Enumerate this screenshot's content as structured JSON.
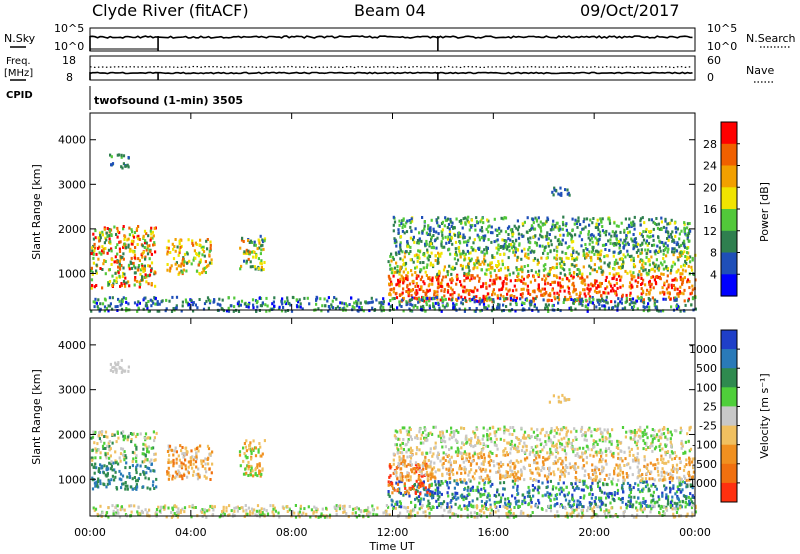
{
  "header": {
    "station": "Clyde River (fitACF)",
    "beam": "Beam 04",
    "date": "09/Oct/2017"
  },
  "top_panels": {
    "nsky_label": "N.Sky",
    "freq_label_1": "Freq.",
    "freq_label_2": "[MHz]",
    "cpid_label": "CPID",
    "nsearch_label": "N.Search",
    "nave_label": "Nave",
    "nsky_ticks": [
      "10^5",
      "10^0"
    ],
    "nsearch_ticks": [
      "10^5",
      "10^0"
    ],
    "freq_ticks": [
      "18",
      "8"
    ],
    "nave_ticks": [
      "60",
      "0"
    ],
    "cpid_text": "twofsound (1-min) 3505"
  },
  "colors": {
    "power_scale": [
      "#0000ff",
      "#1f4fb8",
      "#2f7f4f",
      "#52c83a",
      "#f0e400",
      "#f2a000",
      "#f06000",
      "#ff0000"
    ],
    "velocity_scale": [
      "#1f3fc8",
      "#2a7ab8",
      "#2f8a4f",
      "#4fcf3a",
      "#c8c8c8",
      "#f0c060",
      "#f09020",
      "#f07010",
      "#ff3010"
    ]
  },
  "chart_data": [
    {
      "type": "heatmap",
      "name": "power",
      "ylabel": "Slant Range [km]",
      "yticks": [
        1000,
        2000,
        3000,
        4000
      ],
      "ylim": [
        180,
        4600
      ],
      "xlim": [
        0,
        24
      ],
      "colorbar_label": "Power [dB]",
      "colorbar_ticks": [
        "4",
        "8",
        "12",
        "16",
        "20",
        "24",
        "28"
      ],
      "colorbar_range": [
        0,
        30
      ],
      "regions": [
        {
          "t0": 0.0,
          "t1": 2.6,
          "r0": 700,
          "r1": 2100,
          "vmin": 8,
          "vmax": 30
        },
        {
          "t0": 3.0,
          "t1": 4.8,
          "r0": 1000,
          "r1": 1800,
          "vmin": 10,
          "vmax": 26
        },
        {
          "t0": 5.9,
          "t1": 6.9,
          "r0": 1100,
          "r1": 1900,
          "vmin": 6,
          "vmax": 24
        },
        {
          "t0": 0.7,
          "t1": 1.5,
          "r0": 3400,
          "r1": 3700,
          "vmin": 4,
          "vmax": 12
        },
        {
          "t0": 11.8,
          "t1": 24.0,
          "r0": 400,
          "r1": 1000,
          "vmin": 20,
          "vmax": 30
        },
        {
          "t0": 11.8,
          "t1": 24.0,
          "r0": 1000,
          "r1": 1500,
          "vmin": 8,
          "vmax": 22
        },
        {
          "t0": 12.0,
          "t1": 23.8,
          "r0": 1500,
          "r1": 2300,
          "vmin": 4,
          "vmax": 16
        },
        {
          "t0": 18.2,
          "t1": 19.0,
          "r0": 2750,
          "r1": 2950,
          "vmin": 4,
          "vmax": 12
        },
        {
          "t0": 0.0,
          "t1": 24.0,
          "r0": 180,
          "r1": 500,
          "vmin": 2,
          "vmax": 14
        }
      ]
    },
    {
      "type": "heatmap",
      "name": "velocity",
      "ylabel": "Slant Range [km]",
      "yticks": [
        1000,
        2000,
        3000,
        4000
      ],
      "ylim": [
        180,
        4600
      ],
      "xlim": [
        0,
        24
      ],
      "colorbar_label": "Velocity [m s⁻¹]",
      "colorbar_ticks": [
        "1000",
        "500",
        "100",
        "25",
        "-25",
        "-100",
        "-500",
        "-1000"
      ],
      "regions": [
        {
          "t0": 0.0,
          "t1": 2.6,
          "r0": 800,
          "r1": 1400,
          "cls": [
            1,
            2
          ]
        },
        {
          "t0": 0.0,
          "t1": 2.6,
          "r0": 1400,
          "r1": 2100,
          "cls": [
            2,
            3,
            4,
            5
          ]
        },
        {
          "t0": 3.0,
          "t1": 4.8,
          "r0": 1000,
          "r1": 1800,
          "cls": [
            4,
            5,
            6,
            7
          ]
        },
        {
          "t0": 5.9,
          "t1": 6.9,
          "r0": 1100,
          "r1": 1900,
          "cls": [
            3,
            5,
            6
          ]
        },
        {
          "t0": 0.7,
          "t1": 1.5,
          "r0": 3400,
          "r1": 3700,
          "cls": [
            4
          ]
        },
        {
          "t0": 11.8,
          "t1": 24.0,
          "r0": 400,
          "r1": 1000,
          "cls": [
            0,
            1,
            2,
            3
          ]
        },
        {
          "t0": 11.8,
          "t1": 13.5,
          "r0": 700,
          "r1": 1400,
          "cls": [
            7,
            8,
            6
          ]
        },
        {
          "t0": 12.0,
          "t1": 24.0,
          "r0": 1000,
          "r1": 1600,
          "cls": [
            4,
            5,
            6
          ]
        },
        {
          "t0": 12.0,
          "t1": 23.8,
          "r0": 1600,
          "r1": 2200,
          "cls": [
            4,
            3,
            5
          ]
        },
        {
          "t0": 18.2,
          "t1": 19.0,
          "r0": 2750,
          "r1": 2950,
          "cls": [
            4,
            5
          ]
        },
        {
          "t0": 0.0,
          "t1": 24.0,
          "r0": 180,
          "r1": 450,
          "cls": [
            3,
            4,
            5
          ]
        }
      ]
    }
  ],
  "xaxis": {
    "label": "Time UT",
    "ticks": [
      "00:00",
      "04:00",
      "08:00",
      "12:00",
      "16:00",
      "20:00",
      "00:00"
    ]
  }
}
